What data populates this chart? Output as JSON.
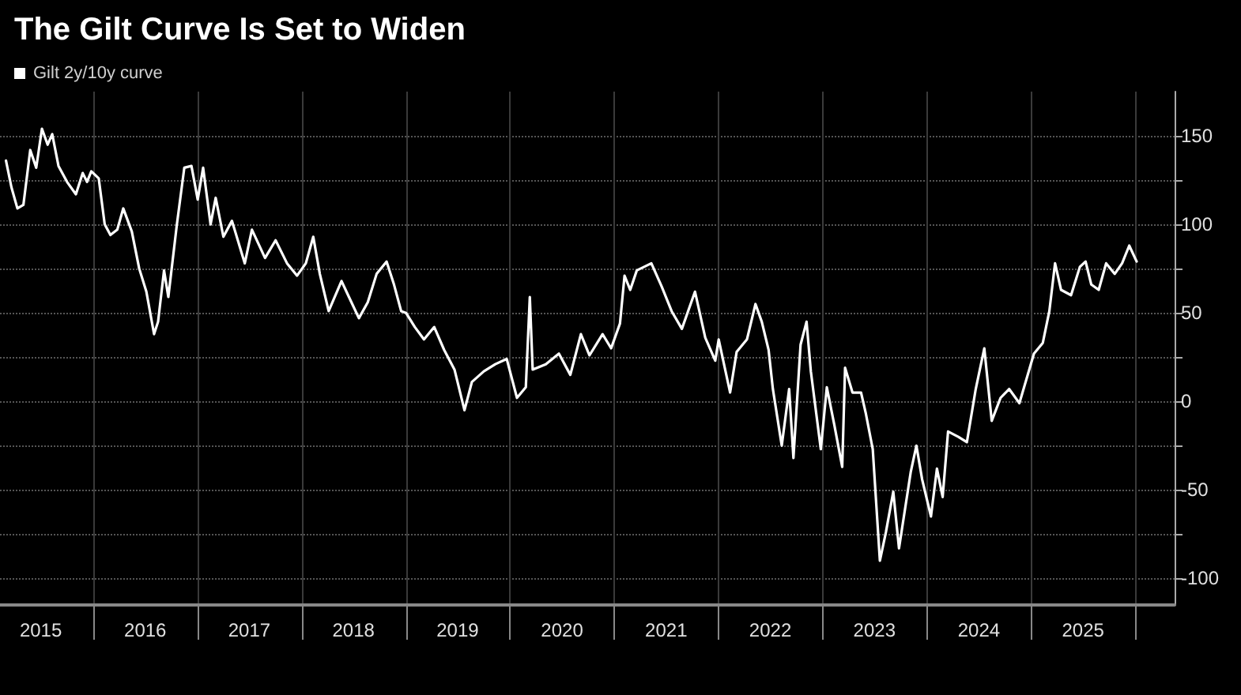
{
  "chart_data": {
    "type": "line",
    "title": "The Gilt Curve Is Set to Widen",
    "x": [
      "2015-03-01",
      "2015-03-20",
      "2015-04-10",
      "2015-05-01",
      "2015-05-25",
      "2015-06-15",
      "2015-07-05",
      "2015-07-25",
      "2015-08-10",
      "2015-09-01",
      "2015-10-01",
      "2015-11-01",
      "2015-11-25",
      "2015-12-10",
      "2015-12-25",
      "2016-01-20",
      "2016-02-10",
      "2016-03-01",
      "2016-03-25",
      "2016-04-15",
      "2016-05-15",
      "2016-06-10",
      "2016-07-05",
      "2016-08-01",
      "2016-08-15",
      "2016-09-05",
      "2016-09-20",
      "2016-10-20",
      "2016-11-15",
      "2016-12-10",
      "2017-01-01",
      "2017-01-20",
      "2017-02-15",
      "2017-03-05",
      "2017-04-01",
      "2017-05-01",
      "2017-06-15",
      "2017-07-10",
      "2017-08-25",
      "2017-10-01",
      "2017-11-10",
      "2017-12-15",
      "2018-01-15",
      "2018-02-10",
      "2018-03-05",
      "2018-04-05",
      "2018-05-20",
      "2018-06-15",
      "2018-07-20",
      "2018-08-20",
      "2018-09-20",
      "2018-10-25",
      "2018-11-20",
      "2018-12-15",
      "2019-01-01",
      "2019-02-01",
      "2019-03-05",
      "2019-04-10",
      "2019-05-15",
      "2019-06-20",
      "2019-07-25",
      "2019-08-20",
      "2019-10-01",
      "2019-11-10",
      "2019-12-20",
      "2020-01-25",
      "2020-02-25",
      "2020-03-10",
      "2020-03-20",
      "2020-05-05",
      "2020-06-20",
      "2020-07-30",
      "2020-09-05",
      "2020-10-05",
      "2020-11-20",
      "2020-12-20",
      "2021-01-20",
      "2021-02-05",
      "2021-02-25",
      "2021-03-20",
      "2021-05-10",
      "2021-06-15",
      "2021-07-20",
      "2021-08-25",
      "2021-10-10",
      "2021-11-15",
      "2021-12-20",
      "2022-01-01",
      "2022-02-10",
      "2022-03-05",
      "2022-04-10",
      "2022-05-10",
      "2022-06-01",
      "2022-06-25",
      "2022-07-10",
      "2022-08-10",
      "2022-09-05",
      "2022-09-20",
      "2022-10-15",
      "2022-11-05",
      "2022-11-20",
      "2022-12-25",
      "2023-01-15",
      "2023-02-10",
      "2023-03-10",
      "2023-03-20",
      "2023-04-15",
      "2023-05-15",
      "2023-06-01",
      "2023-06-25",
      "2023-07-20",
      "2023-08-10",
      "2023-09-05",
      "2023-09-25",
      "2023-10-15",
      "2023-11-05",
      "2023-11-25",
      "2023-12-15",
      "2024-01-15",
      "2024-02-05",
      "2024-02-25",
      "2024-03-15",
      "2024-04-20",
      "2024-05-20",
      "2024-06-20",
      "2024-07-20",
      "2024-08-15",
      "2024-09-15",
      "2024-10-15",
      "2024-11-20",
      "2025-01-10",
      "2025-02-10",
      "2025-03-05",
      "2025-03-25",
      "2025-04-15",
      "2025-05-20",
      "2025-06-20",
      "2025-07-10",
      "2025-07-30",
      "2025-08-25",
      "2025-09-20",
      "2025-10-20",
      "2025-11-15",
      "2025-12-10",
      "2026-01-05"
    ],
    "series": [
      {
        "name": "Gilt 2y/10y curve",
        "color": "#ffffff",
        "values": [
          136,
          121,
          109,
          111,
          142,
          132,
          154,
          145,
          151,
          133,
          124,
          117,
          129,
          124,
          130,
          126,
          100,
          94,
          97,
          109,
          96,
          75,
          62,
          38,
          45,
          74,
          59,
          100,
          132,
          133,
          114,
          132,
          100,
          115,
          93,
          102,
          78,
          97,
          81,
          91,
          78,
          71,
          78,
          93,
          72,
          51,
          68,
          59,
          47,
          56,
          72,
          79,
          66,
          51,
          50,
          42,
          35,
          42,
          29,
          18,
          -5,
          11,
          17,
          21,
          24,
          2,
          8,
          59,
          18,
          21,
          27,
          15,
          38,
          26,
          38,
          30,
          44,
          71,
          63,
          74,
          78,
          65,
          51,
          41,
          62,
          36,
          23,
          35,
          5,
          28,
          35,
          55,
          45,
          29,
          7,
          -25,
          7,
          -32,
          32,
          45,
          17,
          -27,
          8,
          -13,
          -37,
          19,
          5,
          5,
          -7,
          -27,
          -90,
          -74,
          -51,
          -83,
          -62,
          -40,
          -25,
          -44,
          -65,
          -38,
          -54,
          -17,
          -20,
          -23,
          7,
          30,
          -11,
          2,
          7,
          -1,
          27,
          33,
          51,
          78,
          63,
          60,
          76,
          79,
          66,
          63,
          78,
          72,
          78,
          88,
          79
        ]
      }
    ],
    "xlim": [
      "2015-02-08",
      "2026-05-18"
    ],
    "xticks": [
      {
        "value": "2015-07-01",
        "label": "2015"
      },
      {
        "value": "2016-01-01",
        "label": null
      },
      {
        "value": "2016-07-01",
        "label": "2016"
      },
      {
        "value": "2017-01-01",
        "label": null
      },
      {
        "value": "2017-07-01",
        "label": "2017"
      },
      {
        "value": "2018-01-01",
        "label": null
      },
      {
        "value": "2018-07-01",
        "label": "2018"
      },
      {
        "value": "2019-01-01",
        "label": null
      },
      {
        "value": "2019-07-01",
        "label": "2019"
      },
      {
        "value": "2020-01-01",
        "label": null
      },
      {
        "value": "2020-07-01",
        "label": "2020"
      },
      {
        "value": "2021-01-01",
        "label": null
      },
      {
        "value": "2021-07-01",
        "label": "2021"
      },
      {
        "value": "2022-01-01",
        "label": null
      },
      {
        "value": "2022-07-01",
        "label": "2022"
      },
      {
        "value": "2023-01-01",
        "label": null
      },
      {
        "value": "2023-07-01",
        "label": "2023"
      },
      {
        "value": "2024-01-01",
        "label": null
      },
      {
        "value": "2024-07-01",
        "label": "2024"
      },
      {
        "value": "2025-01-01",
        "label": null
      },
      {
        "value": "2025-07-01",
        "label": "2025"
      },
      {
        "value": "2026-01-01",
        "label": null
      }
    ],
    "ylim": [
      -115,
      175
    ],
    "yticks": [
      -100,
      {
        "value": -75,
        "label": null
      },
      -50,
      {
        "value": -25,
        "label": null
      },
      0,
      {
        "value": 25,
        "label": null
      },
      50,
      {
        "value": 75,
        "label": null
      },
      100,
      {
        "value": 125,
        "label": null
      },
      150
    ],
    "grid": true,
    "legend": "top left",
    "marker": "none",
    "line_style": "solid"
  }
}
